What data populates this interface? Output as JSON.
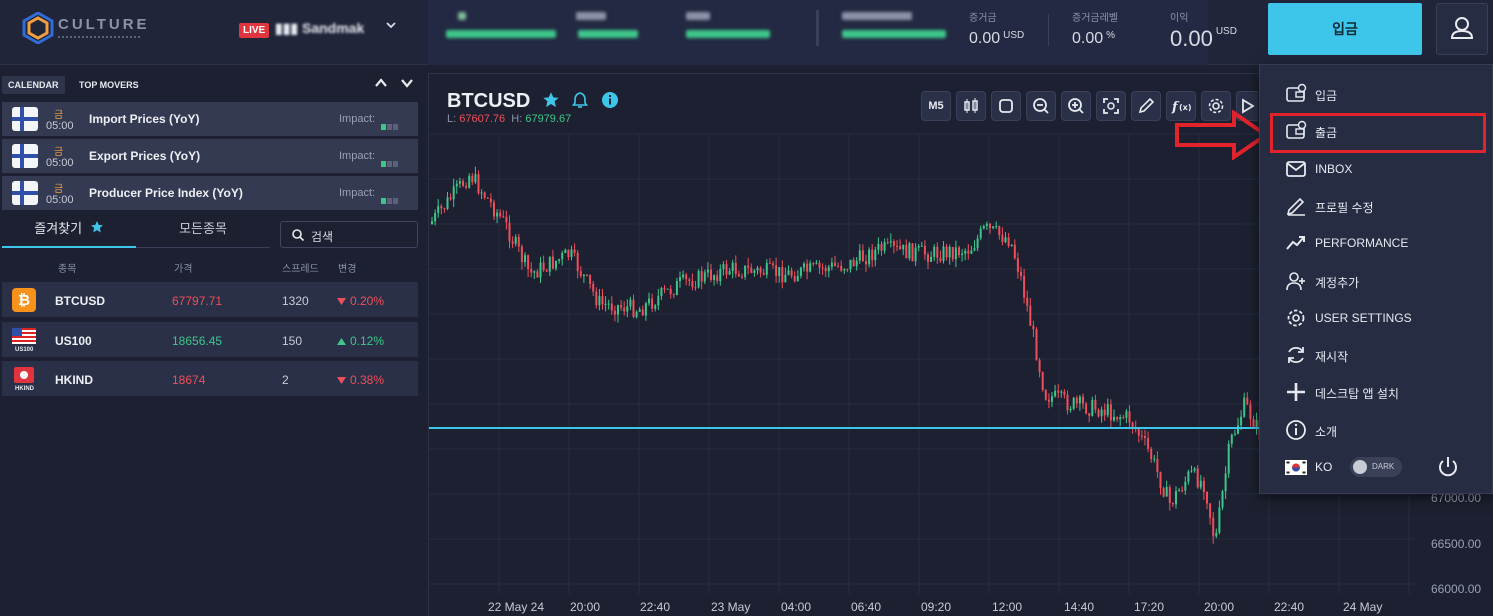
{
  "header": {
    "logo_text": "CULTURE",
    "live_badge": "LIVE",
    "account_name": "▮▮▮ Sandmak",
    "stats": [
      {
        "label": "증거금",
        "value": "0.00",
        "unit": "USD"
      },
      {
        "label": "증거금레벨",
        "value": "0.00",
        "unit": "%"
      },
      {
        "label": "이익",
        "value": "0.00",
        "unit": "USD"
      }
    ],
    "deposit_button": "입금"
  },
  "left_panel": {
    "tabs": [
      "CALENDAR",
      "TOP MOVERS"
    ],
    "calendar": [
      {
        "day": "금",
        "time": "05:00",
        "title": "Import Prices (YoY)",
        "impact_label": "Impact:",
        "impact_level": 1
      },
      {
        "day": "금",
        "time": "05:00",
        "title": "Export Prices (YoY)",
        "impact_label": "Impact:",
        "impact_level": 1
      },
      {
        "day": "금",
        "time": "05:00",
        "title": "Producer Price Index (YoY)",
        "impact_label": "Impact:",
        "impact_level": 1
      }
    ],
    "watch_tabs": [
      "즐겨찾기",
      "모든종목"
    ],
    "search_placeholder": "검색",
    "columns": [
      "종목",
      "가격",
      "스프레드",
      "변경"
    ],
    "markets": [
      {
        "symbol": "BTCUSD",
        "price": "67797.71",
        "spread": "1320",
        "change": "0.20%",
        "direction": "down",
        "icon": "bitcoin-icon",
        "icon_caption": ""
      },
      {
        "symbol": "US100",
        "price": "18656.45",
        "spread": "150",
        "change": "0.12%",
        "direction": "up",
        "icon": "us-flag-icon",
        "icon_caption": "US100"
      },
      {
        "symbol": "HKIND",
        "price": "18674",
        "spread": "2",
        "change": "0.38%",
        "direction": "down",
        "icon": "hk-flag-icon",
        "icon_caption": "HKIND"
      }
    ]
  },
  "chart": {
    "symbol": "BTCUSD",
    "low_label": "L:",
    "low": "67607.76",
    "high_label": "H:",
    "high": "67979.67",
    "timeframe": "M5",
    "y_ticks": [
      "67000.00",
      "66500.00",
      "66000.00"
    ],
    "x_ticks": [
      "22 May 24",
      "20:00",
      "22:40",
      "23 May",
      "04:00",
      "06:40",
      "09:20",
      "12:00",
      "14:40",
      "17:20",
      "20:00",
      "22:40",
      "24 May"
    ],
    "colors": {
      "up": "#3ec68a",
      "down": "#ef4f5a",
      "price_line": "#3ec6ea"
    }
  },
  "user_menu": {
    "items": [
      {
        "label": "입금",
        "icon": "wallet-deposit-icon"
      },
      {
        "label": "출금",
        "icon": "wallet-withdraw-icon"
      },
      {
        "label": "INBOX",
        "icon": "mail-icon"
      },
      {
        "label": "프로필 수정",
        "icon": "pencil-icon"
      },
      {
        "label": "PERFORMANCE",
        "icon": "trend-icon"
      },
      {
        "label": "계정추가",
        "icon": "add-user-icon"
      },
      {
        "label": "USER SETTINGS",
        "icon": "gear-icon"
      },
      {
        "label": "재시작",
        "icon": "refresh-icon"
      },
      {
        "label": "데스크탑 앱 설치",
        "icon": "plus-icon"
      },
      {
        "label": "소개",
        "icon": "info-icon"
      }
    ],
    "language": "KO",
    "theme_toggle": "DARK"
  }
}
